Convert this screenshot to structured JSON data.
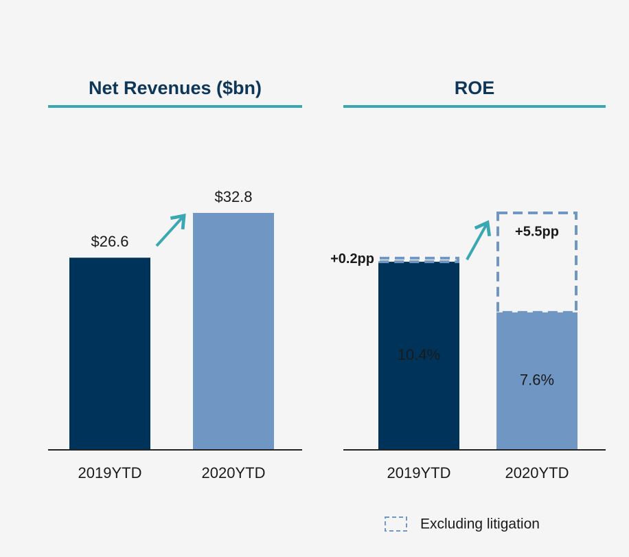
{
  "chart_data": [
    {
      "type": "bar",
      "title": "Net Revenues ($bn)",
      "categories": [
        "2019YTD",
        "2020YTD"
      ],
      "series": [
        {
          "colors": [
            "#003359",
            "#7096c3"
          ],
          "values": [
            26.6,
            32.8
          ],
          "value_labels": [
            "$26.6",
            "$32.8"
          ]
        }
      ]
    },
    {
      "type": "stacked_bar",
      "title": "ROE",
      "categories": [
        "2019YTD",
        "2020YTD"
      ],
      "series": [
        {
          "colors": [
            "#003359",
            "#7096c3"
          ],
          "values": [
            10.4,
            7.6
          ],
          "value_labels": [
            "10.4%",
            "7.6%"
          ]
        },
        {
          "name": "Excluding litigation",
          "color": "#7096c3",
          "style": "dashed",
          "values": [
            0.2,
            5.5
          ],
          "value_labels": [
            "+0.2pp",
            "+5.5pp"
          ]
        }
      ],
      "legend": "bottom-right"
    }
  ]
}
